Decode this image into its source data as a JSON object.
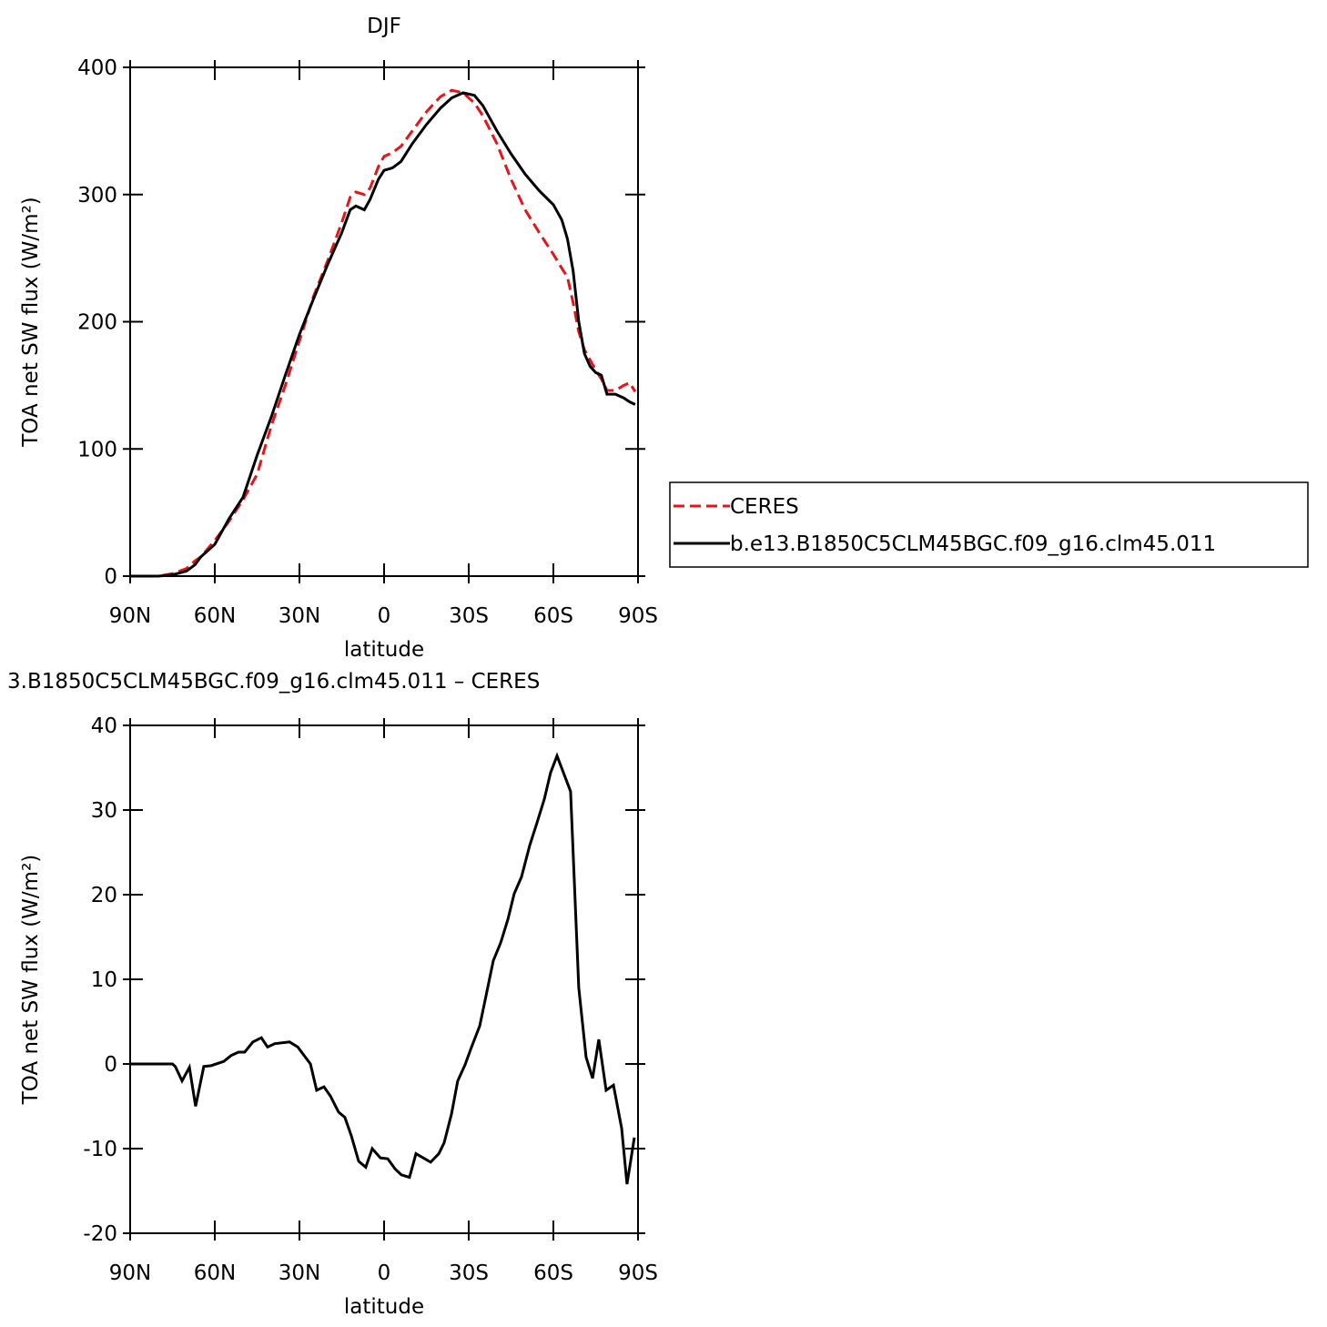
{
  "chart_data": [
    {
      "type": "line",
      "title": "DJF",
      "xlabel": "latitude",
      "ylabel": "TOA net SW flux (W/m²)",
      "xlim": [
        90,
        -90
      ],
      "ylim": [
        0,
        400
      ],
      "xticks": [
        {
          "value": 90,
          "label": "90N"
        },
        {
          "value": 60,
          "label": "60N"
        },
        {
          "value": 30,
          "label": "30N"
        },
        0,
        {
          "value": -30,
          "label": "30S"
        },
        {
          "value": -60,
          "label": "60S"
        },
        {
          "value": -90,
          "label": "90S"
        }
      ],
      "yticks": [
        0,
        100,
        200,
        300,
        400
      ],
      "legend": "right",
      "x": [
        90,
        80,
        75,
        70,
        67,
        65,
        60,
        55,
        50,
        45,
        40,
        35,
        30,
        25,
        20,
        15,
        12,
        10,
        7,
        5,
        2,
        0,
        -3,
        -6,
        -10,
        -15,
        -20,
        -24,
        -28,
        -32,
        -35,
        -40,
        -45,
        -50,
        -55,
        -60,
        -63,
        -65,
        -67,
        -69,
        -71,
        -73,
        -75,
        -77,
        -79,
        -82,
        -85,
        -87,
        -89
      ],
      "series": [
        {
          "name": "CERES",
          "color": "#e8141a",
          "linestyle": "dashed",
          "values": [
            0,
            0,
            2,
            6,
            12,
            15,
            28,
            43,
            60,
            80,
            118,
            150,
            185,
            220,
            248,
            278,
            298,
            302,
            300,
            305,
            322,
            330,
            333,
            338,
            350,
            365,
            377,
            382,
            380,
            372,
            362,
            340,
            312,
            288,
            270,
            253,
            242,
            235,
            215,
            192,
            178,
            170,
            162,
            155,
            146,
            146,
            150,
            152,
            145
          ]
        },
        {
          "name": "b.e13.B1850C5CLM45BGC.f09_g16.clm45.011",
          "color": "#000000",
          "linestyle": "solid",
          "values": [
            0,
            0,
            1,
            4,
            9,
            15,
            25,
            45,
            62,
            95,
            125,
            158,
            190,
            218,
            245,
            270,
            288,
            291,
            288,
            296,
            312,
            319,
            321,
            326,
            340,
            355,
            368,
            376,
            380,
            378,
            370,
            350,
            332,
            316,
            303,
            292,
            280,
            265,
            240,
            200,
            175,
            165,
            160,
            158,
            143,
            143,
            140,
            137,
            135
          ]
        }
      ]
    },
    {
      "type": "line",
      "title": "3.B1850C5CLM45BGC.f09_g16.clm45.011 – CERES",
      "xlabel": "latitude",
      "ylabel": "TOA net SW flux (W/m²)",
      "xlim": [
        90,
        -90
      ],
      "ylim": [
        -20,
        40
      ],
      "xticks": [
        {
          "value": 90,
          "label": "90N"
        },
        {
          "value": 60,
          "label": "60N"
        },
        {
          "value": 30,
          "label": "30N"
        },
        0,
        {
          "value": -30,
          "label": "30S"
        },
        {
          "value": -60,
          "label": "60S"
        },
        {
          "value": -90,
          "label": "90S"
        }
      ],
      "yticks": [
        -20,
        -10,
        0,
        10,
        20,
        30,
        40
      ],
      "x": [
        90,
        75,
        74,
        71.6,
        69,
        66.8,
        63.9,
        61.3,
        56.8,
        54.2,
        51.6,
        49.4,
        46.5,
        43.5,
        41.3,
        38.7,
        33.5,
        30.6,
        26.1,
        23.9,
        21.3,
        19,
        16.1,
        13.9,
        11.6,
        9,
        6.5,
        4.2,
        1.3,
        -1.3,
        -3.9,
        -6.1,
        -9,
        -11.3,
        -16.5,
        -19.4,
        -21.3,
        -23.9,
        -26.1,
        -28.7,
        -31,
        -33.9,
        -36.1,
        -38.7,
        -41.3,
        -43.9,
        -46.1,
        -48.7,
        -51.6,
        -54.2,
        -56.8,
        -59,
        -61.3,
        -66.1,
        -69,
        -71.6,
        -73.9,
        -76.1,
        -78.7,
        -81.3,
        -84.2,
        -86.1,
        -88.7
      ],
      "series": [
        {
          "color": "#000000",
          "linestyle": "solid",
          "values": [
            0,
            0,
            -0.3,
            -2,
            -0.4,
            -5,
            -0.3,
            -0.2,
            0.3,
            1,
            1.4,
            1.4,
            2.6,
            3.1,
            2,
            2.4,
            2.6,
            2,
            0,
            -3.1,
            -2.7,
            -3.8,
            -5.7,
            -6.3,
            -8.5,
            -11.5,
            -12.2,
            -10,
            -11.1,
            -11.2,
            -12.4,
            -13.1,
            -13.4,
            -10.6,
            -11.6,
            -10.6,
            -9.3,
            -5.9,
            -2,
            -0.1,
            2,
            4.5,
            8,
            12.2,
            14.3,
            17.1,
            20.1,
            22.1,
            25.8,
            28.5,
            31.3,
            34.4,
            36.4,
            32.2,
            9,
            0.8,
            -1.7,
            2.9,
            -3.1,
            -2.5,
            -7.6,
            -14.2,
            -8.7
          ]
        }
      ]
    }
  ]
}
